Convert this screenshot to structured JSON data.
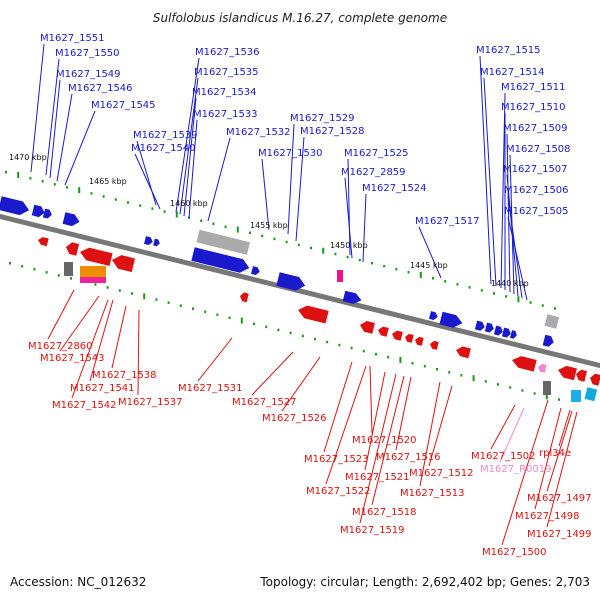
{
  "title": "Sulfolobus islandicus M.16.27, complete genome",
  "footer": {
    "accession": "Accession: NC_012632",
    "info": "Topology: circular; Length: 2,692,402 bp; Genes: 2,703"
  },
  "colors": {
    "forward": "#1a1acc",
    "reverse": "#dd1111",
    "rna": "#ee88cc",
    "pseudo_grey": "#aaaaaa",
    "backbone": "#777777",
    "tick": "#1a9a1a"
  },
  "scale_labels": [
    "1470 kbp",
    "1465 kbp",
    "1460 kbp",
    "1455 kbp",
    "1450 kbp",
    "1445 kbp",
    "1440 kbp"
  ],
  "top_labels": [
    "M1627_1551",
    "M1627_1550",
    "M1627_1549",
    "M1627_1546",
    "M1627_1545",
    "M1627_1539",
    "M1627_1540",
    "M1627_1536",
    "M1627_1535",
    "M1627_1534",
    "M1627_1533",
    "M1627_1532",
    "M1627_1530",
    "M1627_1529",
    "M1627_1528",
    "M1627_1525",
    "M1627_2859",
    "M1627_1524",
    "M1627_1517",
    "M1627_1515",
    "M1627_1514",
    "M1627_1511",
    "M1627_1510",
    "M1627_1509",
    "M1627_1508",
    "M1627_1507",
    "M1627_1506",
    "M1627_1505"
  ],
  "bottom_labels": [
    "M1627_2860",
    "M1627_1543",
    "M1627_1538",
    "M1627_1541",
    "M1627_1542",
    "M1627_1537",
    "M1627_1531",
    "M1627_1527",
    "M1627_1526",
    "M1627_1520",
    "M1627_1523",
    "M1627_1521",
    "M1627_1516",
    "M1627_1522",
    "M1627_1512",
    "M1627_1513",
    "M1627_1518",
    "M1627_1519",
    "M1627_1502",
    "M1627_R0019",
    "rpl34e",
    "M1627_1497",
    "M1627_1498",
    "M1627_1499",
    "M1627_1500"
  ]
}
